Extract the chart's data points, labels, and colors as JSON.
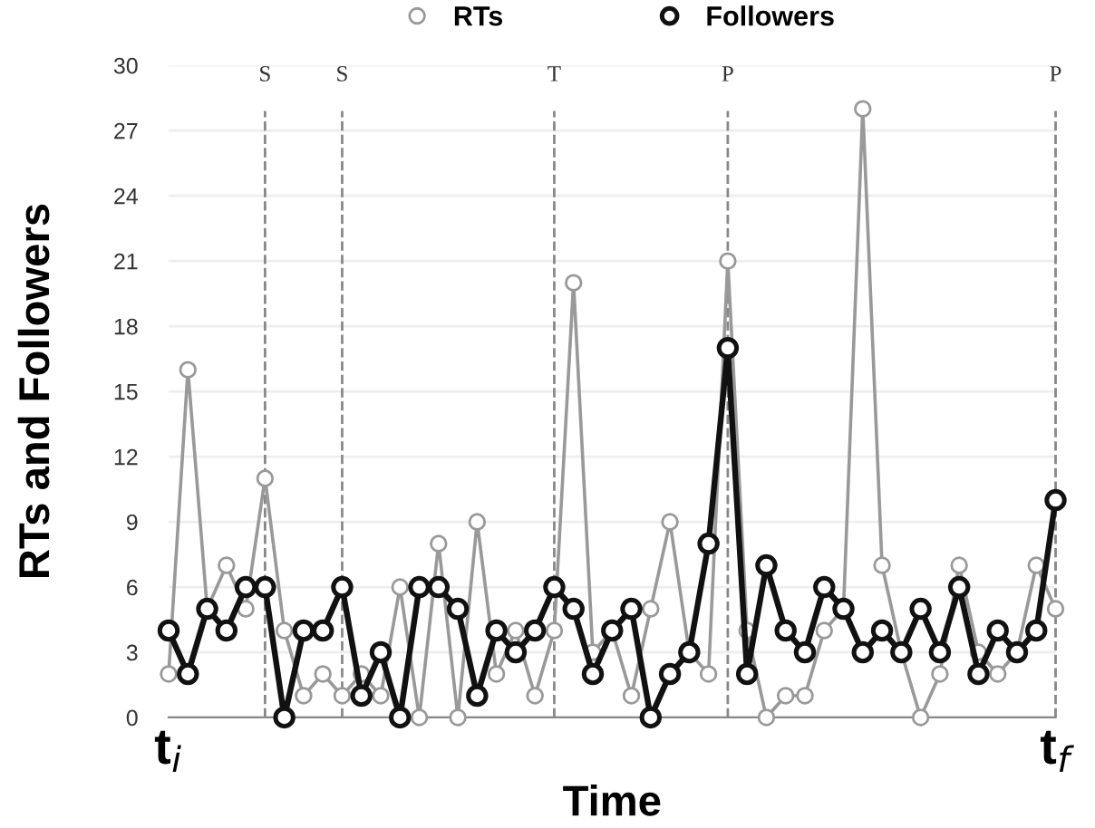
{
  "chart_data": {
    "type": "line",
    "xlabel": "Time",
    "ylabel": "RTs and Followers",
    "categories": [
      "t$_{i}$",
      null,
      null,
      null,
      null,
      null,
      null,
      null,
      null,
      null,
      null,
      null,
      null,
      null,
      null,
      null,
      null,
      null,
      null,
      null,
      null,
      null,
      null,
      null,
      null,
      null,
      null,
      null,
      null,
      null,
      null,
      null,
      null,
      null,
      null,
      null,
      null,
      null,
      null,
      null,
      null,
      null,
      null,
      null,
      null,
      null,
      "t$_{f}$"
    ],
    "series": [
      {
        "name": "RTs",
        "color": "#999999",
        "values": [
          2,
          16,
          5,
          7,
          5,
          11,
          4,
          1,
          2,
          1,
          2,
          1,
          6,
          0,
          8,
          0,
          9,
          2,
          4,
          1,
          4,
          20,
          3,
          4,
          1,
          5,
          9,
          3,
          2,
          21,
          4,
          0,
          1,
          1,
          4,
          5,
          28,
          7,
          3,
          0,
          2,
          7,
          3,
          2,
          3,
          7,
          5
        ]
      },
      {
        "name": "Followers",
        "color": "#111111",
        "values": [
          4,
          2,
          5,
          4,
          6,
          6,
          0,
          4,
          4,
          6,
          1,
          3,
          0,
          6,
          6,
          5,
          1,
          4,
          3,
          4,
          6,
          5,
          2,
          4,
          5,
          0,
          2,
          3,
          8,
          17,
          2,
          7,
          4,
          3,
          6,
          5,
          3,
          4,
          3,
          5,
          3,
          6,
          2,
          4,
          3,
          4,
          10
        ]
      }
    ],
    "ylim": [
      0,
      30
    ],
    "yticks": [
      0,
      3,
      6,
      9,
      12,
      15,
      18,
      21,
      24,
      27,
      30
    ],
    "annotations": [
      "S",
      "S",
      "T",
      "P",
      "P"
    ],
    "grid": "y",
    "legend": "top",
    "marker": "circle",
    "line_style": "solid"
  }
}
